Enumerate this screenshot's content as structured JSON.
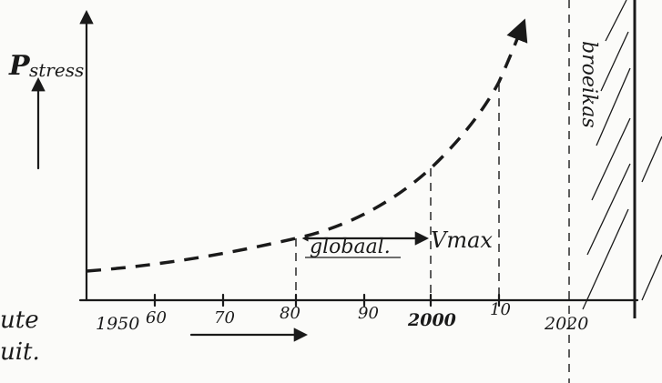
{
  "y_axis_label": {
    "main": "P",
    "sub": "stress"
  },
  "x_ticks": [
    "1950",
    "60",
    "70",
    "80",
    "90",
    "2000",
    "10",
    "2020"
  ],
  "annotations": {
    "range": "globaal.",
    "peak": "Vmax",
    "zone": "broeikas",
    "left_top": "ute",
    "left_bottom": "uit."
  }
}
